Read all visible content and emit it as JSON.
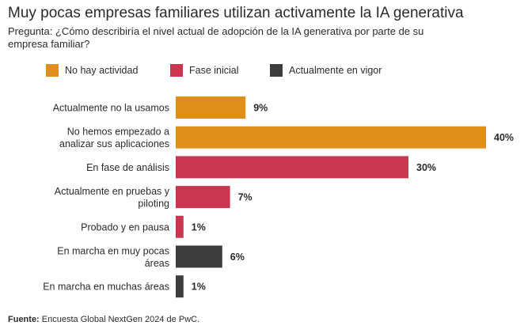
{
  "header": {
    "title": "Muy pocas empresas familiares utilizan activamente la IA generativa",
    "subtitle": "Pregunta: ¿Cómo describiría el nivel actual de adopción de la IA generativa por parte de su empresa familiar?"
  },
  "legend": [
    {
      "label": "No hay actividad",
      "color": "#E0901A"
    },
    {
      "label": "Fase inicial",
      "color": "#CA3550"
    },
    {
      "label": "Actualmente en vigor",
      "color": "#3D3D3D"
    }
  ],
  "footer": {
    "source_label": "Fuente:",
    "source_text": "Encuesta Global NextGen 2024 de PwC."
  },
  "chart_data": {
    "type": "bar",
    "orientation": "horizontal",
    "unit": "%",
    "xlim": [
      0,
      40
    ],
    "grid": false,
    "legend_position": "top-left",
    "categories": [
      [
        "Actualmente no la usamos"
      ],
      [
        "No hemos empezado a",
        "analizar sus aplicaciones"
      ],
      [
        "En fase de análisis"
      ],
      [
        "Actualmente en pruebas y",
        "piloting"
      ],
      [
        "Probado y en pausa"
      ],
      [
        "En marcha en muy pocas",
        "áreas"
      ],
      [
        "En marcha en muchas áreas"
      ]
    ],
    "values": [
      9,
      40,
      30,
      7,
      1,
      6,
      1
    ],
    "value_labels": [
      "9%",
      "40%",
      "30%",
      "7%",
      "1%",
      "6%",
      "1%"
    ],
    "groups": [
      "No hay actividad",
      "No hay actividad",
      "Fase inicial",
      "Fase inicial",
      "Fase inicial",
      "Actualmente en vigor",
      "Actualmente en vigor"
    ]
  }
}
